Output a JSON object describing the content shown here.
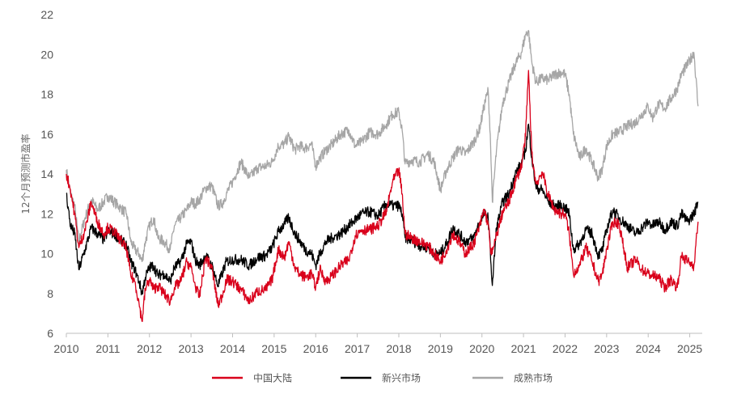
{
  "chart_data": {
    "type": "line",
    "title": "",
    "xlabel": "",
    "ylabel": "12个月预测市盈率",
    "xlim": [
      2010,
      2025.3
    ],
    "ylim": [
      6,
      22
    ],
    "yticks": [
      6,
      8,
      10,
      12,
      14,
      16,
      18,
      20,
      22
    ],
    "xticks": [
      2010,
      2011,
      2012,
      2013,
      2014,
      2015,
      2016,
      2017,
      2018,
      2019,
      2020,
      2021,
      2022,
      2023,
      2024,
      2025
    ],
    "grid": false,
    "legend_position": "bottom",
    "series": [
      {
        "name": "中国大陆",
        "color": "#d9001b",
        "x": [
          2010.0,
          2010.1,
          2010.2,
          2010.3,
          2010.45,
          2010.6,
          2010.75,
          2010.9,
          2011.0,
          2011.15,
          2011.3,
          2011.45,
          2011.55,
          2011.65,
          2011.75,
          2011.82,
          2011.9,
          2012.0,
          2012.1,
          2012.2,
          2012.35,
          2012.5,
          2012.6,
          2012.75,
          2012.9,
          2013.0,
          2013.1,
          2013.2,
          2013.35,
          2013.5,
          2013.65,
          2013.75,
          2013.85,
          2014.0,
          2014.2,
          2014.4,
          2014.6,
          2014.8,
          2014.95,
          2015.1,
          2015.25,
          2015.35,
          2015.5,
          2015.6,
          2015.75,
          2015.9,
          2016.0,
          2016.1,
          2016.25,
          2016.4,
          2016.6,
          2016.8,
          2016.95,
          2017.1,
          2017.3,
          2017.5,
          2017.7,
          2017.85,
          2018.0,
          2018.08,
          2018.15,
          2018.3,
          2018.5,
          2018.7,
          2018.85,
          2019.0,
          2019.15,
          2019.3,
          2019.45,
          2019.6,
          2019.8,
          2019.95,
          2020.05,
          2020.15,
          2020.2,
          2020.25,
          2020.35,
          2020.5,
          2020.65,
          2020.8,
          2020.95,
          2021.05,
          2021.12,
          2021.2,
          2021.3,
          2021.45,
          2021.6,
          2021.75,
          2021.9,
          2022.0,
          2022.1,
          2022.2,
          2022.35,
          2022.5,
          2022.65,
          2022.8,
          2022.9,
          2023.0,
          2023.15,
          2023.3,
          2023.5,
          2023.7,
          2023.85,
          2024.0,
          2024.1,
          2024.25,
          2024.4,
          2024.55,
          2024.7,
          2024.8,
          2024.95,
          2025.1,
          2025.2
        ],
        "values": [
          14.0,
          13.2,
          12.0,
          10.3,
          11.2,
          12.6,
          11.6,
          11.0,
          11.3,
          11.1,
          10.7,
          10.2,
          8.9,
          8.6,
          7.5,
          6.6,
          8.2,
          8.7,
          8.2,
          8.4,
          8.0,
          7.6,
          8.3,
          8.6,
          9.6,
          9.3,
          8.4,
          7.8,
          9.8,
          9.3,
          7.4,
          7.9,
          8.7,
          8.6,
          8.2,
          7.6,
          8.1,
          8.2,
          8.7,
          10.2,
          9.8,
          10.6,
          9.3,
          9.0,
          8.8,
          9.0,
          8.3,
          9.2,
          8.6,
          8.9,
          9.4,
          9.7,
          10.9,
          11.2,
          11.2,
          11.4,
          12.1,
          13.6,
          14.2,
          13.0,
          11.0,
          10.8,
          10.6,
          10.4,
          10.0,
          9.6,
          10.2,
          11.0,
          10.6,
          10.0,
          10.5,
          11.4,
          12.2,
          11.5,
          10.3,
          10.0,
          10.9,
          12.1,
          12.6,
          13.6,
          14.4,
          15.9,
          19.2,
          15.0,
          13.5,
          14.1,
          12.9,
          12.2,
          12.0,
          12.0,
          11.0,
          9.0,
          9.4,
          10.3,
          9.6,
          8.6,
          9.0,
          10.2,
          11.6,
          11.5,
          9.3,
          9.7,
          9.2,
          9.0,
          8.9,
          8.8,
          8.3,
          8.7,
          8.3,
          9.9,
          9.6,
          9.4,
          11.6
        ]
      },
      {
        "name": "新兴市场",
        "color": "#000000",
        "x": [
          2010.0,
          2010.1,
          2010.2,
          2010.3,
          2010.45,
          2010.6,
          2010.75,
          2010.9,
          2011.0,
          2011.15,
          2011.3,
          2011.45,
          2011.55,
          2011.65,
          2011.75,
          2011.82,
          2011.9,
          2012.0,
          2012.1,
          2012.2,
          2012.35,
          2012.5,
          2012.6,
          2012.75,
          2012.9,
          2013.0,
          2013.1,
          2013.2,
          2013.35,
          2013.5,
          2013.65,
          2013.75,
          2013.85,
          2014.0,
          2014.2,
          2014.4,
          2014.6,
          2014.8,
          2014.95,
          2015.1,
          2015.25,
          2015.35,
          2015.5,
          2015.6,
          2015.75,
          2015.9,
          2016.0,
          2016.1,
          2016.25,
          2016.4,
          2016.6,
          2016.8,
          2016.95,
          2017.1,
          2017.3,
          2017.5,
          2017.7,
          2017.85,
          2018.0,
          2018.08,
          2018.15,
          2018.3,
          2018.5,
          2018.7,
          2018.85,
          2019.0,
          2019.15,
          2019.3,
          2019.45,
          2019.6,
          2019.8,
          2019.95,
          2020.05,
          2020.15,
          2020.2,
          2020.25,
          2020.35,
          2020.5,
          2020.65,
          2020.8,
          2020.95,
          2021.05,
          2021.12,
          2021.2,
          2021.3,
          2021.45,
          2021.6,
          2021.75,
          2021.9,
          2022.0,
          2022.1,
          2022.2,
          2022.35,
          2022.5,
          2022.65,
          2022.8,
          2022.9,
          2023.0,
          2023.15,
          2023.3,
          2023.5,
          2023.7,
          2023.85,
          2024.0,
          2024.1,
          2024.25,
          2024.4,
          2024.55,
          2024.7,
          2024.8,
          2024.95,
          2025.1,
          2025.2
        ],
        "values": [
          13.0,
          11.4,
          11.0,
          9.2,
          10.2,
          11.3,
          11.0,
          10.7,
          11.1,
          11.0,
          10.7,
          10.4,
          9.6,
          9.2,
          8.6,
          8.0,
          8.8,
          9.3,
          9.4,
          8.9,
          9.0,
          8.6,
          9.3,
          9.6,
          10.5,
          10.6,
          9.7,
          9.4,
          9.9,
          9.4,
          8.4,
          9.0,
          9.6,
          9.7,
          9.7,
          9.4,
          9.8,
          9.9,
          10.3,
          11.1,
          11.5,
          11.8,
          11.0,
          10.7,
          10.2,
          10.0,
          9.4,
          10.0,
          10.6,
          10.8,
          11.0,
          11.4,
          11.7,
          12.0,
          12.1,
          11.9,
          12.5,
          12.4,
          12.4,
          12.0,
          10.8,
          10.7,
          10.4,
          10.3,
          10.0,
          10.0,
          10.5,
          11.3,
          11.0,
          10.6,
          10.8,
          11.6,
          12.0,
          11.8,
          10.2,
          8.4,
          11.3,
          12.6,
          13.0,
          14.0,
          14.5,
          15.2,
          16.5,
          14.8,
          13.3,
          13.2,
          12.6,
          12.4,
          12.4,
          12.3,
          12.0,
          10.2,
          10.5,
          11.2,
          11.0,
          9.9,
          10.2,
          11.2,
          12.2,
          11.8,
          11.4,
          11.0,
          11.3,
          11.6,
          11.4,
          11.6,
          11.2,
          11.6,
          11.4,
          12.0,
          11.6,
          12.0,
          12.6
        ]
      },
      {
        "name": "成熟市场",
        "color": "#a6a6a6",
        "x": [
          2010.0,
          2010.1,
          2010.2,
          2010.3,
          2010.45,
          2010.6,
          2010.75,
          2010.9,
          2011.0,
          2011.15,
          2011.3,
          2011.45,
          2011.55,
          2011.65,
          2011.75,
          2011.82,
          2011.9,
          2012.0,
          2012.1,
          2012.2,
          2012.35,
          2012.5,
          2012.6,
          2012.75,
          2012.9,
          2013.0,
          2013.1,
          2013.2,
          2013.35,
          2013.5,
          2013.65,
          2013.75,
          2013.85,
          2014.0,
          2014.2,
          2014.4,
          2014.6,
          2014.8,
          2014.95,
          2015.1,
          2015.25,
          2015.35,
          2015.5,
          2015.6,
          2015.75,
          2015.9,
          2016.0,
          2016.1,
          2016.25,
          2016.4,
          2016.6,
          2016.8,
          2016.95,
          2017.1,
          2017.3,
          2017.5,
          2017.7,
          2017.85,
          2018.0,
          2018.08,
          2018.15,
          2018.3,
          2018.5,
          2018.7,
          2018.85,
          2019.0,
          2019.15,
          2019.3,
          2019.45,
          2019.6,
          2019.8,
          2019.95,
          2020.05,
          2020.15,
          2020.2,
          2020.25,
          2020.35,
          2020.5,
          2020.65,
          2020.8,
          2020.95,
          2021.05,
          2021.12,
          2021.2,
          2021.3,
          2021.45,
          2021.6,
          2021.75,
          2021.9,
          2022.0,
          2022.1,
          2022.2,
          2022.35,
          2022.5,
          2022.65,
          2022.8,
          2022.9,
          2023.0,
          2023.15,
          2023.3,
          2023.5,
          2023.7,
          2023.85,
          2024.0,
          2024.1,
          2024.25,
          2024.4,
          2024.55,
          2024.7,
          2024.8,
          2024.95,
          2025.1,
          2025.2
        ],
        "values": [
          14.2,
          13.0,
          12.4,
          10.6,
          11.8,
          12.7,
          12.2,
          12.6,
          12.9,
          12.6,
          12.3,
          12.0,
          10.6,
          10.2,
          10.0,
          9.6,
          10.6,
          11.4,
          11.8,
          10.8,
          10.6,
          10.2,
          11.4,
          11.8,
          12.2,
          12.6,
          12.5,
          12.7,
          13.3,
          13.4,
          12.4,
          12.5,
          13.0,
          13.6,
          14.6,
          13.8,
          14.3,
          14.4,
          14.6,
          15.4,
          15.5,
          15.9,
          15.2,
          15.4,
          15.3,
          15.5,
          14.4,
          14.8,
          15.2,
          15.5,
          16.0,
          16.2,
          15.4,
          15.6,
          16.1,
          16.0,
          16.5,
          17.0,
          17.1,
          16.2,
          14.5,
          14.7,
          14.6,
          15.0,
          14.6,
          13.2,
          14.2,
          14.8,
          15.3,
          15.0,
          15.6,
          16.3,
          17.4,
          18.2,
          16.0,
          12.6,
          15.2,
          17.6,
          18.6,
          19.5,
          20.1,
          21.0,
          21.2,
          19.6,
          18.6,
          18.8,
          18.7,
          19.0,
          19.1,
          19.0,
          18.0,
          16.0,
          14.8,
          15.3,
          14.6,
          13.8,
          14.3,
          15.4,
          16.0,
          16.1,
          16.4,
          16.6,
          17.0,
          17.4,
          16.8,
          17.5,
          17.3,
          17.8,
          18.3,
          19.0,
          19.5,
          20.1,
          17.4
        ]
      }
    ]
  }
}
